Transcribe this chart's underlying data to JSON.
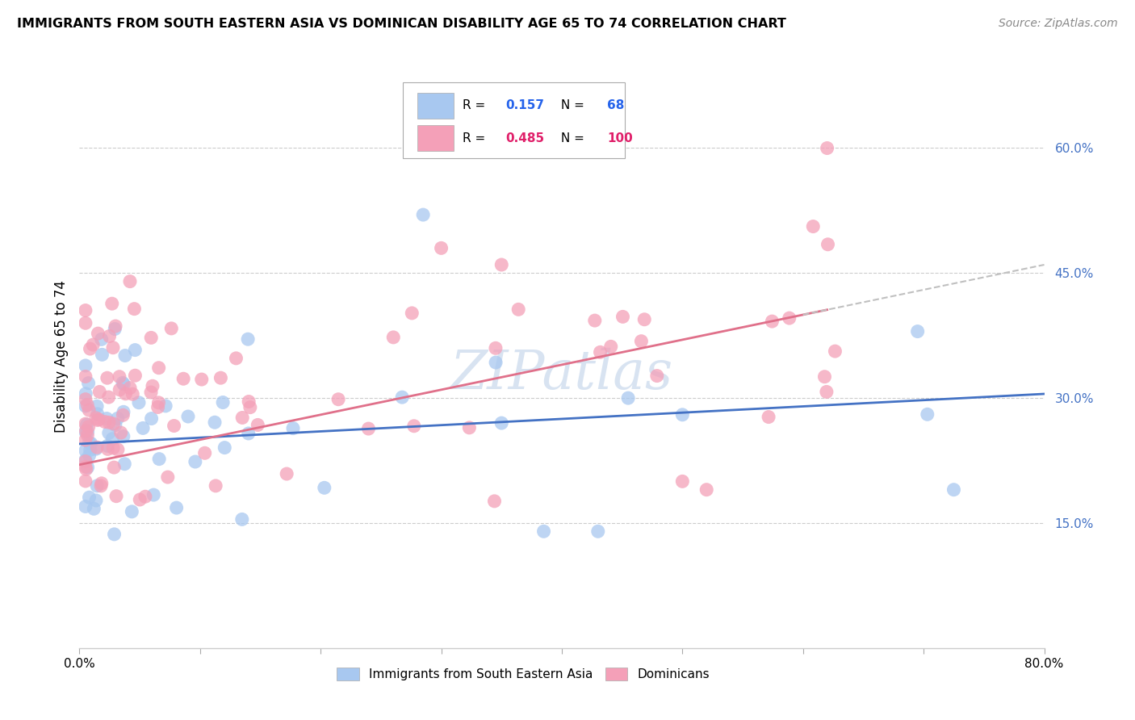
{
  "title": "IMMIGRANTS FROM SOUTH EASTERN ASIA VS DOMINICAN DISABILITY AGE 65 TO 74 CORRELATION CHART",
  "source": "Source: ZipAtlas.com",
  "ylabel": "Disability Age 65 to 74",
  "xlim": [
    0.0,
    0.8
  ],
  "ylim": [
    0.0,
    0.7
  ],
  "blue_color": "#A8C8F0",
  "pink_color": "#F4A0B8",
  "blue_line_color": "#4472C4",
  "pink_line_color": "#E0708A",
  "dash_color": "#C0C0C0",
  "watermark": "ZIPatlas",
  "watermark_color": "#C8D8EC",
  "r_blue": 0.157,
  "n_blue": 68,
  "r_pink": 0.485,
  "n_pink": 100,
  "ytick_color": "#4472C4",
  "legend_box_color": "#E8E8F0"
}
